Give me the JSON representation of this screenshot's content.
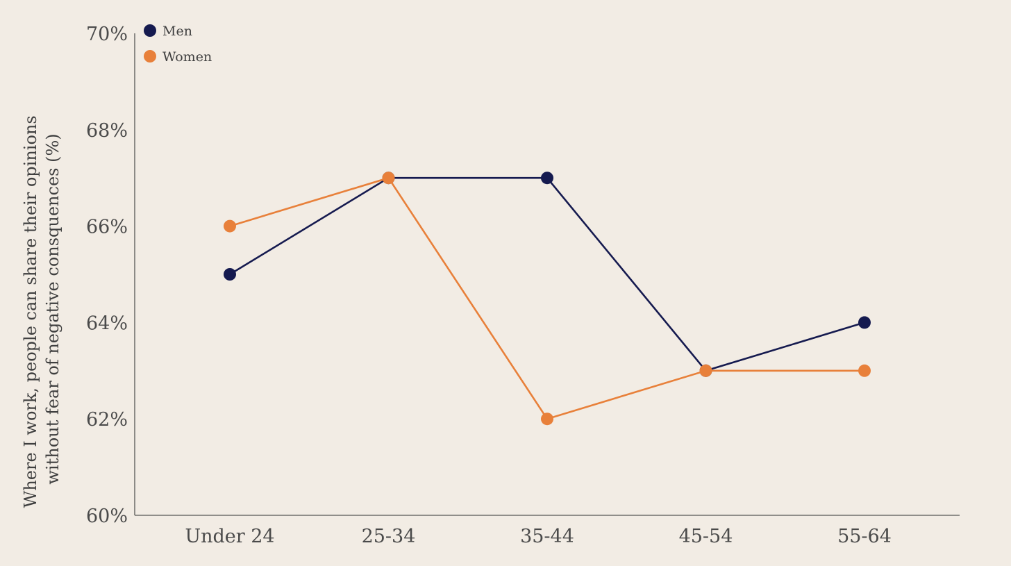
{
  "chart_data": {
    "type": "line",
    "categories": [
      "Under 24",
      "25-34",
      "35-44",
      "45-54",
      "55-64"
    ],
    "series": [
      {
        "name": "Men",
        "color": "#151a4f",
        "values": [
          65,
          67,
          67,
          63,
          64
        ]
      },
      {
        "name": "Women",
        "color": "#e8803a",
        "values": [
          66,
          67,
          62,
          63,
          63
        ]
      }
    ],
    "ylabel_lines": [
      "Where I work, people can share their opinions",
      "without fear of negative consquences (%)"
    ],
    "yticks": [
      60,
      62,
      64,
      66,
      68,
      70
    ],
    "ytick_labels": [
      "60%",
      "62%",
      "64%",
      "66%",
      "68%",
      "70%"
    ],
    "ylim": [
      60,
      70
    ],
    "grid": false,
    "legend_position": "top-left"
  }
}
